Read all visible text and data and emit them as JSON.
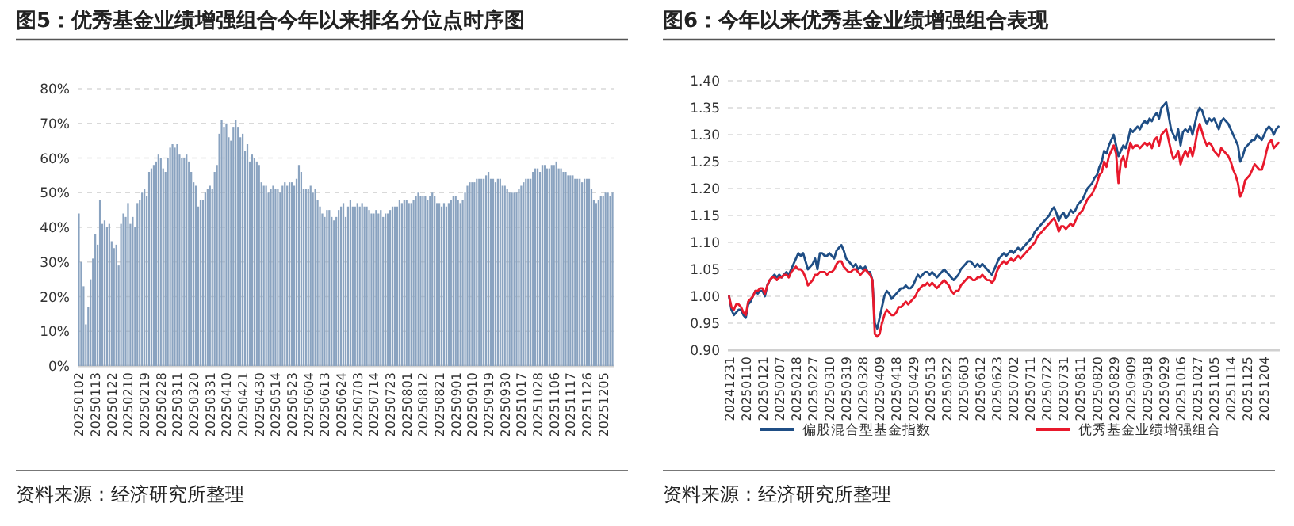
{
  "chart_data": [
    {
      "type": "bar",
      "title": "图5：优秀基金业绩增强组合今年以来排名分位点时序图",
      "color": "#8aa3c0",
      "categories": [
        "20250102",
        null,
        null,
        null,
        null,
        null,
        null,
        "20250113",
        null,
        null,
        null,
        null,
        null,
        null,
        "20250122",
        null,
        null,
        null,
        null,
        null,
        null,
        "20250210",
        null,
        null,
        null,
        null,
        null,
        null,
        "20250219",
        null,
        null,
        null,
        null,
        null,
        null,
        "20250228",
        null,
        null,
        null,
        null,
        null,
        null,
        "20250311",
        null,
        null,
        null,
        null,
        null,
        null,
        "20250320",
        null,
        null,
        null,
        null,
        null,
        null,
        "20250331",
        null,
        null,
        null,
        null,
        null,
        null,
        "20250410",
        null,
        null,
        null,
        null,
        null,
        null,
        "20250421",
        null,
        null,
        null,
        null,
        null,
        null,
        "20250430",
        null,
        null,
        null,
        null,
        null,
        null,
        "20250514",
        null,
        null,
        null,
        null,
        null,
        null,
        "20250523",
        null,
        null,
        null,
        null,
        null,
        null,
        "20250604",
        null,
        null,
        null,
        null,
        null,
        null,
        "20250613",
        null,
        null,
        null,
        null,
        null,
        null,
        "20250624",
        null,
        null,
        null,
        null,
        null,
        null,
        "20250703",
        null,
        null,
        null,
        null,
        null,
        null,
        "20250714",
        null,
        null,
        null,
        null,
        null,
        null,
        "20250723",
        null,
        null,
        null,
        null,
        null,
        null,
        "20250801",
        null,
        null,
        null,
        null,
        null,
        null,
        "20250812",
        null,
        null,
        null,
        null,
        null,
        null,
        "20250821",
        null,
        null,
        null,
        null,
        null,
        null,
        "20250901",
        null,
        null,
        null,
        null,
        null,
        null,
        "20250910",
        null,
        null,
        null,
        null,
        null,
        null,
        "20250919",
        null,
        null,
        null,
        null,
        null,
        null,
        "20250930",
        null,
        null,
        null,
        null,
        null,
        null,
        "20251017",
        null,
        null,
        null,
        null,
        null,
        null,
        "20251028",
        null,
        null,
        null,
        null,
        null,
        null,
        "20251106",
        null,
        null,
        null,
        null,
        null,
        null,
        "20251117",
        null,
        null,
        null,
        null,
        null,
        null,
        "20251126",
        null,
        null,
        null,
        null,
        null,
        null,
        "20251205",
        null,
        null,
        null,
        null
      ],
      "values": [
        44,
        30,
        23,
        12,
        17,
        25,
        31,
        38,
        35,
        48,
        41,
        42,
        40,
        41,
        36,
        34,
        35,
        29,
        41,
        44,
        43,
        47,
        41,
        43,
        40,
        47,
        48,
        50,
        51,
        49,
        56,
        57,
        58,
        59,
        61,
        60,
        57,
        56,
        60,
        63,
        64,
        63,
        64,
        61,
        60,
        60,
        61,
        59,
        56,
        53,
        52,
        46,
        48,
        48,
        50,
        51,
        52,
        51,
        56,
        58,
        67,
        71,
        69,
        70,
        66,
        65,
        69,
        71,
        69,
        66,
        67,
        62,
        64,
        59,
        61,
        60,
        59,
        58,
        53,
        52,
        52,
        50,
        51,
        52,
        51,
        51,
        50,
        52,
        53,
        52,
        53,
        53,
        52,
        54,
        58,
        56,
        51,
        51,
        51,
        52,
        50,
        51,
        48,
        46,
        44,
        43,
        45,
        45,
        43,
        42,
        43,
        45,
        46,
        47,
        43,
        46,
        48,
        46,
        46,
        47,
        46,
        47,
        46,
        46,
        45,
        44,
        44,
        45,
        44,
        45,
        43,
        44,
        44,
        45,
        46,
        46,
        46,
        48,
        47,
        48,
        48,
        47,
        47,
        48,
        49,
        50,
        49,
        49,
        49,
        48,
        49,
        50,
        49,
        47,
        47,
        46,
        47,
        46,
        47,
        48,
        49,
        49,
        48,
        47,
        48,
        50,
        52,
        53,
        53,
        53,
        54,
        54,
        54,
        54,
        55,
        56,
        54,
        54,
        53,
        54,
        54,
        52,
        52,
        51,
        50,
        50,
        50,
        50,
        51,
        52,
        53,
        54,
        54,
        54,
        56,
        57,
        57,
        56,
        58,
        58,
        57,
        57,
        58,
        58,
        59,
        57,
        57,
        56,
        56,
        55,
        55,
        55,
        54,
        54,
        54,
        53,
        54,
        54,
        54,
        51,
        48,
        47,
        48,
        49,
        49,
        50,
        50,
        49,
        50
      ],
      "ylim": [
        0,
        80
      ],
      "yticks": [
        {
          "value": 0,
          "label": "0%"
        },
        {
          "value": 10,
          "label": "10%"
        },
        {
          "value": 20,
          "label": "20%"
        },
        {
          "value": 30,
          "label": "30%"
        },
        {
          "value": 40,
          "label": "40%"
        },
        {
          "value": 50,
          "label": "50%"
        },
        {
          "value": 60,
          "label": "60%"
        },
        {
          "value": 70,
          "label": "70%"
        },
        {
          "value": 80,
          "label": "80%"
        }
      ],
      "grid": "y",
      "annotations": [
        "资料来源：经济研究所整理"
      ]
    },
    {
      "type": "line",
      "title": "图6：今年以来优秀基金业绩增强组合表现",
      "categories": [
        "20241231",
        null,
        null,
        null,
        null,
        null,
        null,
        "20250110",
        null,
        null,
        null,
        null,
        null,
        null,
        "20250121",
        null,
        null,
        null,
        null,
        null,
        null,
        "20250207",
        null,
        null,
        null,
        null,
        null,
        null,
        "20250218",
        null,
        null,
        null,
        null,
        null,
        null,
        "20250227",
        null,
        null,
        null,
        null,
        null,
        null,
        "20250310",
        null,
        null,
        null,
        null,
        null,
        null,
        "20250319",
        null,
        null,
        null,
        null,
        null,
        null,
        "20250328",
        null,
        null,
        null,
        null,
        null,
        null,
        "20250409",
        null,
        null,
        null,
        null,
        null,
        null,
        "20250418",
        null,
        null,
        null,
        null,
        null,
        null,
        "20250429",
        null,
        null,
        null,
        null,
        null,
        null,
        "20250513",
        null,
        null,
        null,
        null,
        null,
        null,
        "20250522",
        null,
        null,
        null,
        null,
        null,
        null,
        "20250603",
        null,
        null,
        null,
        null,
        null,
        null,
        "20250612",
        null,
        null,
        null,
        null,
        null,
        null,
        "20250623",
        null,
        null,
        null,
        null,
        null,
        null,
        "20250702",
        null,
        null,
        null,
        null,
        null,
        null,
        "20250711",
        null,
        null,
        null,
        null,
        null,
        null,
        "20250722",
        null,
        null,
        null,
        null,
        null,
        null,
        "20250731",
        null,
        null,
        null,
        null,
        null,
        null,
        "20250811",
        null,
        null,
        null,
        null,
        null,
        null,
        "20250820",
        null,
        null,
        null,
        null,
        null,
        null,
        "20250829",
        null,
        null,
        null,
        null,
        null,
        null,
        "20250909",
        null,
        null,
        null,
        null,
        null,
        null,
        "20250918",
        null,
        null,
        null,
        null,
        null,
        null,
        "20250929",
        null,
        null,
        null,
        null,
        null,
        null,
        "20251016",
        null,
        null,
        null,
        null,
        null,
        null,
        "20251027",
        null,
        null,
        null,
        null,
        null,
        null,
        "20251105",
        null,
        null,
        null,
        null,
        null,
        null,
        "20251114",
        null,
        null,
        null,
        null,
        null,
        null,
        "20251125",
        null,
        null,
        null,
        null,
        null,
        null,
        "20251204",
        null,
        null,
        null,
        null,
        null,
        null
      ],
      "series": [
        {
          "name": "偏股混合型基金指数",
          "color": "#1f4e85",
          "values": [
            1.0,
            0.975,
            0.965,
            0.97,
            0.975,
            0.975,
            0.965,
            0.96,
            0.985,
            0.99,
            1.0,
            1.01,
            1.005,
            1.01,
            1.01,
            1.0,
            1.02,
            1.03,
            1.035,
            1.04,
            1.035,
            1.04,
            1.035,
            1.04,
            1.045,
            1.04,
            1.05,
            1.06,
            1.07,
            1.08,
            1.075,
            1.08,
            1.065,
            1.05,
            1.055,
            1.06,
            1.07,
            1.05,
            1.08,
            1.08,
            1.075,
            1.075,
            1.08,
            1.075,
            1.07,
            1.085,
            1.09,
            1.095,
            1.085,
            1.07,
            1.065,
            1.06,
            1.055,
            1.06,
            1.05,
            1.055,
            1.05,
            1.055,
            1.045,
            1.045,
            1.03,
            0.95,
            0.94,
            0.96,
            0.98,
            1.0,
            1.01,
            1.005,
            0.995,
            1.0,
            1.005,
            1.01,
            1.015,
            1.015,
            1.02,
            1.015,
            1.015,
            1.02,
            1.03,
            1.04,
            1.035,
            1.04,
            1.045,
            1.045,
            1.04,
            1.045,
            1.04,
            1.035,
            1.04,
            1.045,
            1.05,
            1.045,
            1.04,
            1.035,
            1.03,
            1.035,
            1.04,
            1.05,
            1.055,
            1.06,
            1.065,
            1.065,
            1.06,
            1.055,
            1.06,
            1.055,
            1.06,
            1.055,
            1.05,
            1.045,
            1.04,
            1.05,
            1.06,
            1.07,
            1.075,
            1.08,
            1.075,
            1.08,
            1.085,
            1.08,
            1.085,
            1.09,
            1.085,
            1.09,
            1.095,
            1.1,
            1.105,
            1.11,
            1.12,
            1.125,
            1.13,
            1.135,
            1.14,
            1.145,
            1.15,
            1.16,
            1.165,
            1.155,
            1.14,
            1.15,
            1.155,
            1.145,
            1.15,
            1.16,
            1.155,
            1.16,
            1.17,
            1.175,
            1.18,
            1.19,
            1.2,
            1.205,
            1.21,
            1.22,
            1.225,
            1.24,
            1.25,
            1.27,
            1.265,
            1.28,
            1.29,
            1.3,
            1.28,
            1.26,
            1.27,
            1.28,
            1.275,
            1.29,
            1.31,
            1.305,
            1.31,
            1.315,
            1.31,
            1.32,
            1.325,
            1.32,
            1.33,
            1.325,
            1.335,
            1.34,
            1.33,
            1.35,
            1.355,
            1.36,
            1.335,
            1.31,
            1.3,
            1.29,
            1.31,
            1.28,
            1.305,
            1.31,
            1.305,
            1.315,
            1.3,
            1.32,
            1.34,
            1.35,
            1.345,
            1.33,
            1.32,
            1.33,
            1.325,
            1.33,
            1.32,
            1.31,
            1.325,
            1.33,
            1.325,
            1.32,
            1.31,
            1.3,
            1.29,
            1.28,
            1.25,
            1.26,
            1.275,
            1.28,
            1.285,
            1.29,
            1.29,
            1.3,
            1.295,
            1.29,
            1.3,
            1.31,
            1.315,
            1.31,
            1.3,
            1.31,
            1.315
          ]
        },
        {
          "name": "优秀基金业绩增强组合",
          "color": "#e8192c",
          "values": [
            1.0,
            0.98,
            0.975,
            0.985,
            0.985,
            0.98,
            0.97,
            0.965,
            0.99,
            0.995,
            1.0,
            1.01,
            1.01,
            1.015,
            1.015,
            1.005,
            1.02,
            1.03,
            1.035,
            1.035,
            1.03,
            1.035,
            1.035,
            1.04,
            1.04,
            1.035,
            1.045,
            1.05,
            1.055,
            1.05,
            1.05,
            1.045,
            1.035,
            1.02,
            1.025,
            1.03,
            1.04,
            1.04,
            1.045,
            1.045,
            1.045,
            1.04,
            1.045,
            1.045,
            1.05,
            1.06,
            1.065,
            1.065,
            1.055,
            1.05,
            1.045,
            1.045,
            1.05,
            1.05,
            1.045,
            1.04,
            1.045,
            1.05,
            1.045,
            1.04,
            1.03,
            0.93,
            0.925,
            0.93,
            0.95,
            0.965,
            0.975,
            0.97,
            0.965,
            0.965,
            0.97,
            0.98,
            0.98,
            0.985,
            0.99,
            0.985,
            0.99,
            0.995,
            1.0,
            1.01,
            1.015,
            1.02,
            1.02,
            1.025,
            1.02,
            1.025,
            1.02,
            1.015,
            1.02,
            1.025,
            1.03,
            1.025,
            1.02,
            1.01,
            1.005,
            1.01,
            1.01,
            1.02,
            1.025,
            1.03,
            1.035,
            1.035,
            1.03,
            1.03,
            1.035,
            1.035,
            1.04,
            1.035,
            1.03,
            1.03,
            1.025,
            1.03,
            1.045,
            1.055,
            1.06,
            1.065,
            1.06,
            1.065,
            1.07,
            1.065,
            1.07,
            1.075,
            1.07,
            1.075,
            1.08,
            1.085,
            1.09,
            1.095,
            1.1,
            1.11,
            1.115,
            1.12,
            1.125,
            1.13,
            1.135,
            1.14,
            1.145,
            1.135,
            1.12,
            1.13,
            1.13,
            1.125,
            1.13,
            1.135,
            1.13,
            1.14,
            1.15,
            1.155,
            1.16,
            1.17,
            1.18,
            1.185,
            1.19,
            1.2,
            1.21,
            1.225,
            1.23,
            1.25,
            1.24,
            1.26,
            1.27,
            1.28,
            1.265,
            1.21,
            1.25,
            1.26,
            1.24,
            1.265,
            1.285,
            1.275,
            1.28,
            1.28,
            1.275,
            1.28,
            1.285,
            1.28,
            1.285,
            1.275,
            1.29,
            1.295,
            1.28,
            1.3,
            1.305,
            1.31,
            1.29,
            1.27,
            1.255,
            1.26,
            1.27,
            1.245,
            1.26,
            1.27,
            1.26,
            1.275,
            1.26,
            1.28,
            1.305,
            1.32,
            1.305,
            1.29,
            1.28,
            1.285,
            1.28,
            1.27,
            1.265,
            1.26,
            1.275,
            1.27,
            1.265,
            1.26,
            1.25,
            1.235,
            1.225,
            1.21,
            1.185,
            1.195,
            1.215,
            1.22,
            1.225,
            1.235,
            1.245,
            1.24,
            1.235,
            1.235,
            1.25,
            1.27,
            1.285,
            1.29,
            1.275,
            1.28,
            1.285
          ]
        }
      ],
      "ylim": [
        0.9,
        1.4
      ],
      "yticks": [
        {
          "value": 0.9,
          "label": "0.90"
        },
        {
          "value": 0.95,
          "label": "0.95"
        },
        {
          "value": 1.0,
          "label": "1.00"
        },
        {
          "value": 1.05,
          "label": "1.05"
        },
        {
          "value": 1.1,
          "label": "1.10"
        },
        {
          "value": 1.15,
          "label": "1.15"
        },
        {
          "value": 1.2,
          "label": "1.20"
        },
        {
          "value": 1.25,
          "label": "1.25"
        },
        {
          "value": 1.3,
          "label": "1.30"
        },
        {
          "value": 1.35,
          "label": "1.35"
        },
        {
          "value": 1.4,
          "label": "1.40"
        }
      ],
      "grid": "y",
      "legend": "bottom",
      "annotations": [
        "资料来源：经济研究所整理"
      ]
    }
  ]
}
